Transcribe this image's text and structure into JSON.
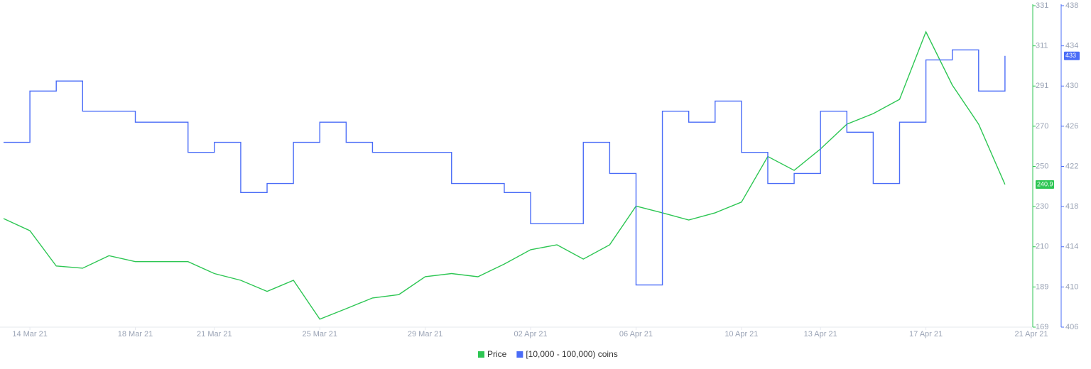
{
  "chart_data": {
    "type": "line",
    "x": [
      "2021-03-13",
      "2021-03-14",
      "2021-03-15",
      "2021-03-16",
      "2021-03-17",
      "2021-03-18",
      "2021-03-19",
      "2021-03-20",
      "2021-03-21",
      "2021-03-22",
      "2021-03-23",
      "2021-03-24",
      "2021-03-25",
      "2021-03-26",
      "2021-03-27",
      "2021-03-28",
      "2021-03-29",
      "2021-03-30",
      "2021-03-31",
      "2021-04-01",
      "2021-04-02",
      "2021-04-03",
      "2021-04-04",
      "2021-04-05",
      "2021-04-06",
      "2021-04-07",
      "2021-04-08",
      "2021-04-09",
      "2021-04-10",
      "2021-04-11",
      "2021-04-12",
      "2021-04-13",
      "2021-04-14",
      "2021-04-15",
      "2021-04-16",
      "2021-04-17",
      "2021-04-18",
      "2021-04-19",
      "2021-04-20"
    ],
    "xlim": [
      "2021-03-13",
      "2021-04-21"
    ],
    "xticks": [
      {
        "value": "2021-03-14",
        "label": "14 Mar 21"
      },
      {
        "value": "2021-03-18",
        "label": "18 Mar 21"
      },
      {
        "value": "2021-03-21",
        "label": "21 Mar 21"
      },
      {
        "value": "2021-03-25",
        "label": "25 Mar 21"
      },
      {
        "value": "2021-03-29",
        "label": "29 Mar 21"
      },
      {
        "value": "2021-04-02",
        "label": "02 Apr 21"
      },
      {
        "value": "2021-04-06",
        "label": "06 Apr 21"
      },
      {
        "value": "2021-04-10",
        "label": "10 Apr 21"
      },
      {
        "value": "2021-04-13",
        "label": "13 Apr 21"
      },
      {
        "value": "2021-04-17",
        "label": "17 Apr 21"
      },
      {
        "value": "2021-04-21",
        "label": "21 Apr 21"
      }
    ],
    "ylim": [
      169,
      331
    ],
    "yticks": [
      169,
      {
        "value": 189.25,
        "label": "189"
      },
      {
        "value": 209.5,
        "label": "210"
      },
      {
        "value": 229.75,
        "label": "230"
      },
      250,
      {
        "value": 270.25,
        "label": "270"
      },
      {
        "value": 290.5,
        "label": "291"
      },
      {
        "value": 310.75,
        "label": "311"
      },
      331
    ],
    "y2lim": [
      406,
      438
    ],
    "y2ticks": [
      406,
      410,
      414,
      418,
      422,
      426,
      430,
      434,
      438
    ],
    "series": [
      {
        "name": "Price",
        "color": "#2dc653",
        "values": [
          223.7,
          217.6,
          199.8,
          198.7,
          205,
          202,
          202,
          202,
          196,
          192.6,
          187,
          192.6,
          173,
          178.3,
          183.7,
          185.4,
          194.4,
          196,
          194.4,
          200.8,
          208,
          210.5,
          203.3,
          210.5,
          230,
          226.6,
          223,
          226.6,
          232,
          255,
          248,
          258.8,
          271.3,
          276.6,
          283.8,
          317.8,
          291,
          271.3,
          240.9
        ]
      },
      {
        "name": "[10,000 - 100,000) coins",
        "color": "#4a6cf7",
        "axis": "y2",
        "values": [
          424.4,
          429.5,
          430.5,
          427.5,
          427.5,
          426.4,
          426.4,
          423.4,
          424.4,
          419.4,
          420.3,
          424.4,
          426.4,
          424.4,
          423.4,
          423.4,
          423.4,
          420.3,
          420.3,
          419.4,
          416.3,
          416.3,
          424.4,
          421.3,
          410.2,
          427.5,
          426.4,
          428.5,
          423.4,
          420.3,
          421.3,
          427.5,
          425.4,
          420.3,
          426.4,
          432.6,
          433.6,
          429.5,
          433
        ]
      }
    ]
  }
}
